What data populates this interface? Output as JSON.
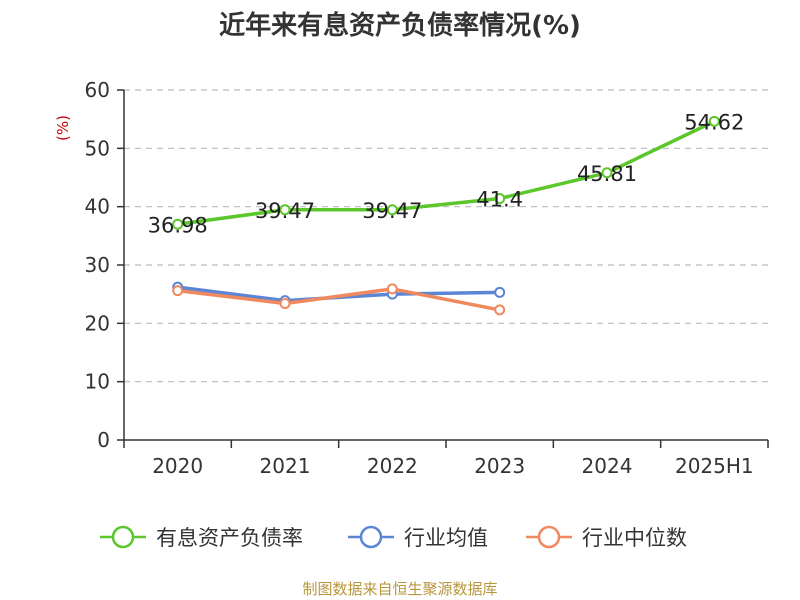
{
  "chart_data": {
    "type": "line",
    "title": "近年来有息资产负债率情况(%)",
    "ylabel": "(%)",
    "categories": [
      "2020",
      "2021",
      "2022",
      "2023",
      "2024",
      "2025H1"
    ],
    "ylim": [
      0,
      60
    ],
    "yticks": [
      0,
      10,
      20,
      30,
      40,
      50,
      60
    ],
    "grid": true,
    "legend_position": "bottom",
    "series": [
      {
        "name": "有息资产负债率",
        "color": "#5bc72b",
        "values": [
          36.98,
          39.47,
          39.47,
          41.4,
          45.81,
          54.62
        ],
        "labels": [
          "36.98",
          "39.47",
          "39.47",
          "41.4",
          "45.81",
          "54.62"
        ]
      },
      {
        "name": "行业均值",
        "color": "#5b86d6",
        "values": [
          26.2,
          23.9,
          25.0,
          25.3,
          null,
          null
        ]
      },
      {
        "name": "行业中位数",
        "color": "#f0895e",
        "values": [
          25.6,
          23.4,
          25.9,
          22.3,
          null,
          null
        ]
      }
    ]
  },
  "source": "制图数据来自恒生聚源数据库"
}
